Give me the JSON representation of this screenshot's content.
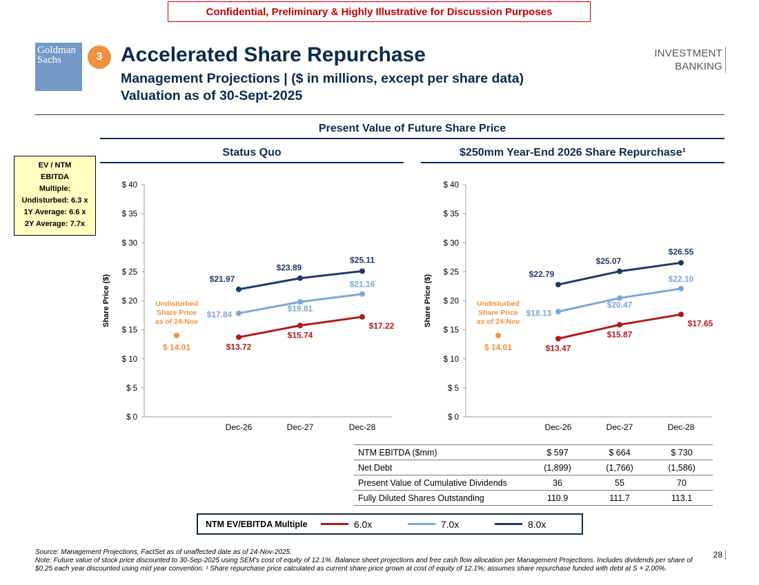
{
  "banner": "Confidential, Preliminary & Highly Illustrative for Discussion Purposes",
  "logo": {
    "line1": "Goldman",
    "line2": "Sachs"
  },
  "section_number": "3",
  "header": {
    "title": "Accelerated Share Repurchase",
    "subtitle_line1": "Management Projections | ($ in millions, except per share data)",
    "subtitle_line2": "Valuation as of 30-Sept-2025"
  },
  "brand_mark": {
    "line1": "INVESTMENT",
    "line2": "BANKING"
  },
  "pv_title": "Present Value of Future Share Price",
  "ev_box": {
    "heading": "EV / NTM EBITDA Multiple:",
    "lines": [
      "Undisturbed: 6.3 x",
      "1Y Average: 6.6 x",
      "2Y Average: 7.7x"
    ]
  },
  "colors": {
    "multiple_6x": "#b01a1a",
    "multiple_7x": "#7ea6d4",
    "multiple_8x": "#1f3864",
    "undisturbed": "#f0913d",
    "navy": "#0b2a4a"
  },
  "chart_data": [
    {
      "type": "line",
      "title": "Status Quo",
      "ylabel": "Share Price ($)",
      "ylim": [
        0,
        40
      ],
      "yticks": [
        "$ 0",
        "$ 5",
        "$ 10",
        "$ 15",
        "$ 20",
        "$ 25",
        "$ 30",
        "$ 35",
        "$ 40"
      ],
      "categories": [
        "Dec-26",
        "Dec-27",
        "Dec-28"
      ],
      "series": [
        {
          "name": "6.0x",
          "values": [
            13.72,
            15.74,
            17.22
          ],
          "labels": [
            "$13.72",
            "$15.74",
            "$17.22"
          ]
        },
        {
          "name": "7.0x",
          "values": [
            17.84,
            19.81,
            21.16
          ],
          "labels": [
            "$17.84",
            "$19.81",
            "$21.16"
          ]
        },
        {
          "name": "8.0x",
          "values": [
            21.97,
            23.89,
            25.11
          ],
          "labels": [
            "$21.97",
            "$23.89",
            "$25.11"
          ]
        }
      ],
      "undisturbed": {
        "value": 14.01,
        "label": "$ 14.01",
        "text": [
          "Undisturbed",
          "Share Price",
          "as of 24-Nov"
        ]
      }
    },
    {
      "type": "line",
      "title": "$250mm Year-End 2026 Share Repurchase¹",
      "ylabel": "Share Price ($)",
      "ylim": [
        0,
        40
      ],
      "yticks": [
        "$ 0",
        "$ 5",
        "$ 10",
        "$ 15",
        "$ 20",
        "$ 25",
        "$ 30",
        "$ 35",
        "$ 40"
      ],
      "categories": [
        "Dec-26",
        "Dec-27",
        "Dec-28"
      ],
      "series": [
        {
          "name": "6.0x",
          "values": [
            13.47,
            15.87,
            17.65
          ],
          "labels": [
            "$13.47",
            "$15.87",
            "$17.65"
          ]
        },
        {
          "name": "7.0x",
          "values": [
            18.13,
            20.47,
            22.1
          ],
          "labels": [
            "$18.13",
            "$20.47",
            "$22.10"
          ]
        },
        {
          "name": "8.0x",
          "values": [
            22.79,
            25.07,
            26.55
          ],
          "labels": [
            "$22.79",
            "$25.07",
            "$26.55"
          ]
        }
      ],
      "undisturbed": {
        "value": 14.01,
        "label": "$ 14.01",
        "text": [
          "Undisturbed",
          "Share Price",
          "as of 24-Nov"
        ]
      }
    }
  ],
  "metrics_table": {
    "rows": [
      {
        "label": "NTM EBITDA ($mm)",
        "values": [
          "$ 597",
          "$ 664",
          "$ 730"
        ]
      },
      {
        "label": "Net Debt",
        "values": [
          "(1,899)",
          "(1,766)",
          "(1,586)"
        ]
      },
      {
        "label": "Present Value of Cumulative Dividends",
        "values": [
          "36",
          "55",
          "70"
        ]
      },
      {
        "label": "Fully Diluted Shares Outstanding",
        "values": [
          "110.9",
          "111.7",
          "113.1"
        ]
      }
    ]
  },
  "legend": {
    "title": "NTM EV/EBITDA Multiple",
    "items": [
      {
        "label": "6.0x",
        "color": "#b01a1a"
      },
      {
        "label": "7.0x",
        "color": "#7ea6d4"
      },
      {
        "label": "8.0x",
        "color": "#1f3864"
      }
    ]
  },
  "footnote": {
    "source": "Source: Management Projections, FactSet as of unaffected date as of 24-Nov-2025.",
    "note": "Note: Future value of stock price discounted to 30-Sep-2025 using SEM’s cost of equity of 12.1%. Balance sheet projections and free cash flow allocation per Management Projections. Includes dividends per share of $0.25 each year discounted using mid year convention. ¹ Share repurchase price calculated as current share price grown at cost of equity of 12.1%; assumes share repurchase funded with debt at S + 2.00%."
  },
  "page_number": "28"
}
